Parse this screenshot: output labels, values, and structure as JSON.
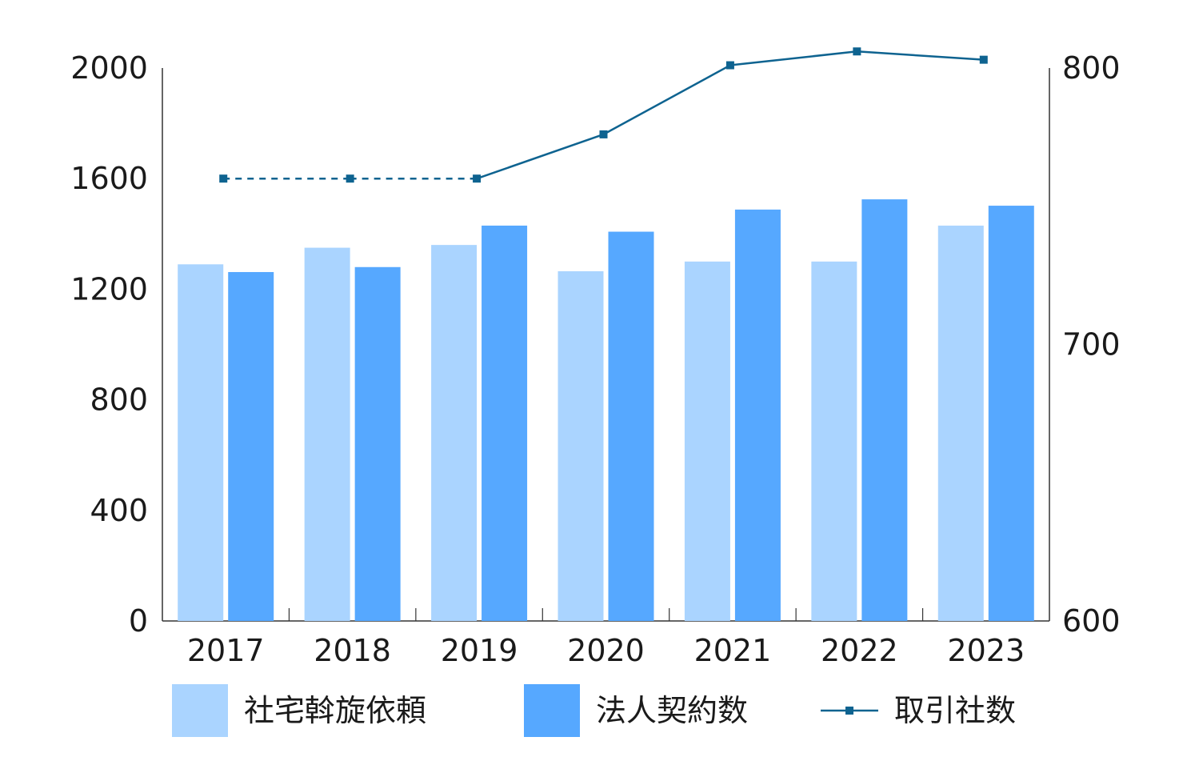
{
  "chart_data": {
    "type": "bar",
    "categories": [
      "2017",
      "2018",
      "2019",
      "2020",
      "2021",
      "2022",
      "2023"
    ],
    "series": [
      {
        "name": "社宅斡旋依頼",
        "kind": "bar",
        "axis": "left",
        "color": "#aad4ff",
        "values": [
          1290,
          1350,
          1360,
          1265,
          1300,
          1300,
          1430
        ]
      },
      {
        "name": "法人契約数",
        "kind": "bar",
        "axis": "left",
        "color": "#56a8ff",
        "values": [
          1262,
          1280,
          1430,
          1408,
          1488,
          1525,
          1502
        ]
      },
      {
        "name": "取引社数",
        "kind": "line",
        "axis": "right",
        "color": "#0e6390",
        "values": [
          760,
          760,
          760,
          776,
          801,
          806,
          803
        ],
        "dashed_segments": [
          [
            0,
            1
          ],
          [
            1,
            2
          ]
        ]
      }
    ],
    "y_left": {
      "min": 0,
      "max": 2000,
      "ticks": [
        "0",
        "400",
        "800",
        "1200",
        "1600",
        "2000"
      ]
    },
    "y_right": {
      "min": 600,
      "max": 800,
      "ticks": [
        "600",
        "700",
        "800"
      ]
    },
    "legend_position": "bottom",
    "grid": false
  }
}
